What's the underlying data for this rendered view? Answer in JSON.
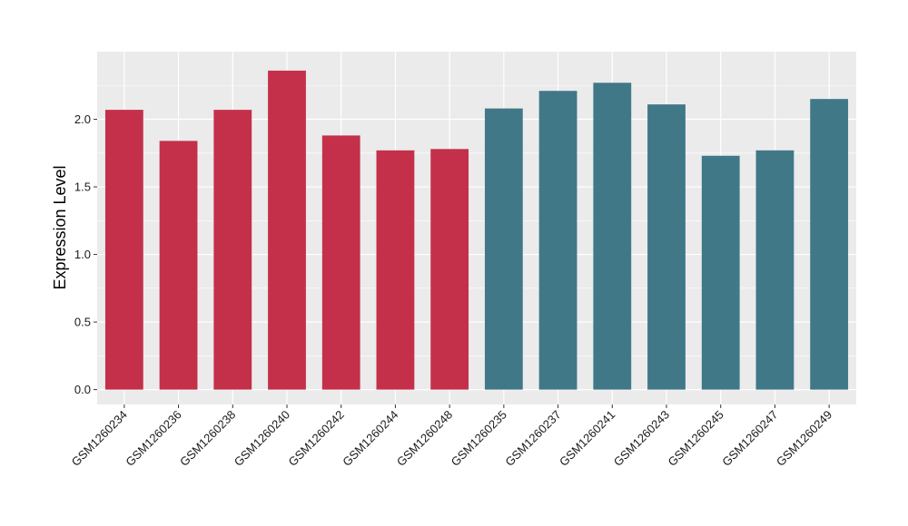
{
  "chart_data": {
    "type": "bar",
    "title": "",
    "xlabel": "",
    "ylabel": "Expression Level",
    "ylim": [
      -0.11,
      2.5
    ],
    "yticks": [
      0.0,
      0.5,
      1.0,
      1.5,
      2.0
    ],
    "ytick_labels": [
      "0.0",
      "0.5",
      "1.0",
      "1.5",
      "2.0"
    ],
    "grid": true,
    "categories": [
      "GSM1260234",
      "GSM1260236",
      "GSM1260238",
      "GSM1260240",
      "GSM1260242",
      "GSM1260244",
      "GSM1260248",
      "GSM1260235",
      "GSM1260237",
      "GSM1260241",
      "GSM1260243",
      "GSM1260245",
      "GSM1260247",
      "GSM1260249"
    ],
    "values": [
      2.07,
      1.84,
      2.07,
      2.36,
      1.88,
      1.77,
      1.78,
      2.08,
      2.21,
      2.27,
      2.11,
      1.73,
      1.77,
      2.15
    ],
    "bar_colors": [
      "#c4304a",
      "#c4304a",
      "#c4304a",
      "#c4304a",
      "#c4304a",
      "#c4304a",
      "#c4304a",
      "#417888",
      "#417888",
      "#417888",
      "#417888",
      "#417888",
      "#417888",
      "#417888"
    ],
    "panel_background": "#ebebeb",
    "grid_color": "#ffffff"
  }
}
